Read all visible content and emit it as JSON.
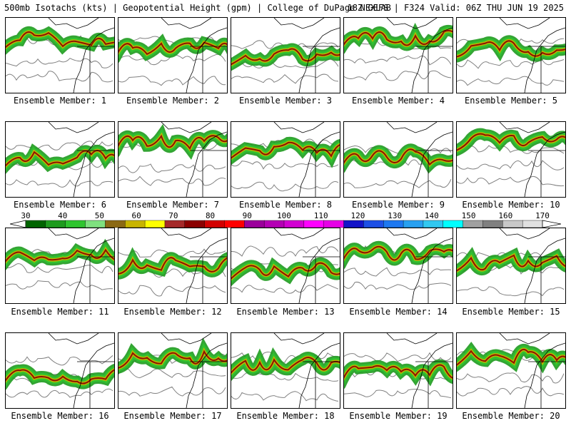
{
  "header": {
    "title_left": "500mb Isotachs (kts) | Geopotential Height (gpm) | College of DuPage NEXLAB",
    "title_right": "18Z GEFS | F324 Valid: 06Z THU JUN 19 2025"
  },
  "legend": {
    "labels": [
      "30",
      "40",
      "50",
      "60",
      "70",
      "80",
      "90",
      "100",
      "110",
      "120",
      "130",
      "140",
      "150",
      "160",
      "170"
    ],
    "colors": [
      "#006400",
      "#1e9b1e",
      "#2fc52f",
      "#7fe07f",
      "#8b6914",
      "#c8b400",
      "#ffff00",
      "#a52a2a",
      "#8b0000",
      "#d20000",
      "#ff0000",
      "#9b009b",
      "#b400b4",
      "#d200d2",
      "#ff00ff",
      "#e600e6",
      "#1414c8",
      "#1e50e6",
      "#1e78f0",
      "#28a0f0",
      "#32c8f0",
      "#00ffff",
      "#a0a0a0",
      "#808080",
      "#c8c8c8",
      "#e0e0e0"
    ]
  },
  "panels": [
    {
      "label": "Ensemble Member: 1"
    },
    {
      "label": "Ensemble Member: 2"
    },
    {
      "label": "Ensemble Member: 3"
    },
    {
      "label": "Ensemble Member: 4"
    },
    {
      "label": "Ensemble Member: 5"
    },
    {
      "label": "Ensemble Member: 6"
    },
    {
      "label": "Ensemble Member: 7"
    },
    {
      "label": "Ensemble Member: 8"
    },
    {
      "label": "Ensemble Member: 9"
    },
    {
      "label": "Ensemble Member: 10"
    },
    {
      "label": "Ensemble Member: 11"
    },
    {
      "label": "Ensemble Member: 12"
    },
    {
      "label": "Ensemble Member: 13"
    },
    {
      "label": "Ensemble Member: 14"
    },
    {
      "label": "Ensemble Member: 15"
    },
    {
      "label": "Ensemble Member: 16"
    },
    {
      "label": "Ensemble Member: 17"
    },
    {
      "label": "Ensemble Member: 18"
    },
    {
      "label": "Ensemble Member: 19"
    },
    {
      "label": "Ensemble Member: 20"
    }
  ],
  "colors": {
    "jet_outer": "#1e9b1e",
    "jet_mid": "#2fc52f",
    "jet_core": "#c8b400",
    "jet_max": "#8b0000",
    "height_contour": "#808080",
    "coastline": "#000000"
  }
}
